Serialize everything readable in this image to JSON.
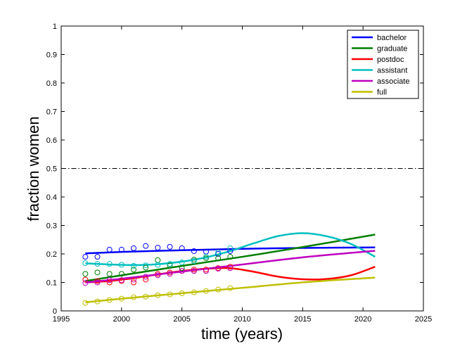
{
  "chart_data": {
    "type": "line",
    "xlabel": "time (years)",
    "ylabel": "fraction women",
    "xlim": [
      1995,
      2025
    ],
    "ylim": [
      0,
      1
    ],
    "xticks": [
      1995,
      2000,
      2005,
      2010,
      2015,
      2020,
      2025
    ],
    "yticks": [
      0,
      0.1,
      0.2,
      0.3,
      0.4,
      0.5,
      0.6,
      0.7,
      0.8,
      0.9,
      1
    ],
    "xtick_labels": [
      "1995",
      "2000",
      "2005",
      "2010",
      "2015",
      "2020",
      "2025"
    ],
    "ytick_labels": [
      "0",
      "0.1",
      "0.2",
      "0.3",
      "0.4",
      "0.5",
      "0.6",
      "0.7",
      "0.8",
      "0.9",
      "1"
    ],
    "grid": false,
    "legend_position": "top-right",
    "reference_line": {
      "y": 0.5,
      "style": "dash-dot"
    },
    "series": [
      {
        "name": "bachelor",
        "color": "#0000ff",
        "fit": {
          "x": [
            1997,
            2000,
            2005,
            2010,
            2015,
            2021
          ],
          "y": [
            0.202,
            0.207,
            0.213,
            0.218,
            0.221,
            0.223
          ]
        },
        "observed": {
          "x": [
            1997,
            1998,
            1999,
            2000,
            2001,
            2002,
            2003,
            2004,
            2005,
            2006,
            2007,
            2008,
            2009
          ],
          "y": [
            0.19,
            0.19,
            0.215,
            0.215,
            0.22,
            0.228,
            0.222,
            0.225,
            0.22,
            0.21,
            0.208,
            0.2,
            0.21
          ]
        }
      },
      {
        "name": "graduate",
        "color": "#007f00",
        "fit": {
          "x": [
            1997,
            2000,
            2005,
            2010,
            2015,
            2021
          ],
          "y": [
            0.105,
            0.125,
            0.158,
            0.19,
            0.224,
            0.268
          ]
        },
        "observed": {
          "x": [
            1997,
            1998,
            1999,
            2000,
            2001,
            2002,
            2003,
            2004,
            2005,
            2006,
            2007,
            2008,
            2009
          ],
          "y": [
            0.13,
            0.135,
            0.13,
            0.13,
            0.145,
            0.152,
            0.178,
            0.16,
            0.15,
            0.18,
            0.185,
            0.185,
            0.19
          ]
        }
      },
      {
        "name": "postdoc",
        "color": "#ff0000",
        "fit": {
          "x": [
            1997,
            1999,
            2001,
            2003,
            2005,
            2007,
            2009,
            2011,
            2013,
            2015,
            2017,
            2019,
            2021
          ],
          "y": [
            0.1,
            0.105,
            0.115,
            0.128,
            0.14,
            0.148,
            0.15,
            0.137,
            0.12,
            0.111,
            0.112,
            0.125,
            0.155
          ]
        },
        "observed": {
          "x": [
            1997,
            1998,
            1999,
            2000,
            2001,
            2002,
            2003,
            2004,
            2005,
            2006,
            2007,
            2008,
            2009
          ],
          "y": [
            0.11,
            0.105,
            0.1,
            0.105,
            0.1,
            0.11,
            0.13,
            0.135,
            0.14,
            0.145,
            0.145,
            0.15,
            0.155
          ]
        }
      },
      {
        "name": "assistant",
        "color": "#00bfbf",
        "fit": {
          "x": [
            1997,
            1999,
            2001,
            2003,
            2005,
            2007,
            2009,
            2011,
            2013,
            2015,
            2017,
            2019,
            2021
          ],
          "y": [
            0.167,
            0.163,
            0.161,
            0.164,
            0.173,
            0.188,
            0.21,
            0.238,
            0.263,
            0.273,
            0.262,
            0.235,
            0.19
          ]
        },
        "observed": {
          "x": [
            1997,
            1998,
            1999,
            2000,
            2001,
            2002,
            2003,
            2004,
            2005,
            2006,
            2007,
            2008,
            2009
          ],
          "y": [
            0.168,
            0.165,
            0.165,
            0.162,
            0.158,
            0.16,
            0.162,
            0.165,
            0.17,
            0.175,
            0.19,
            0.205,
            0.22
          ]
        }
      },
      {
        "name": "associate",
        "color": "#bf00bf",
        "fit": {
          "x": [
            1997,
            2000,
            2005,
            2010,
            2015,
            2021
          ],
          "y": [
            0.1,
            0.113,
            0.138,
            0.163,
            0.188,
            0.211
          ]
        },
        "observed": {
          "x": [
            1997,
            1998,
            1999,
            2000,
            2001,
            2002,
            2003,
            2004,
            2005,
            2006,
            2007,
            2008,
            2009
          ],
          "y": [
            0.098,
            0.1,
            0.108,
            0.108,
            0.11,
            0.12,
            0.125,
            0.13,
            0.14,
            0.14,
            0.14,
            0.148,
            0.15
          ]
        }
      },
      {
        "name": "full",
        "color": "#bfbf00",
        "fit": {
          "x": [
            1997,
            2000,
            2005,
            2010,
            2015,
            2021
          ],
          "y": [
            0.03,
            0.043,
            0.062,
            0.081,
            0.1,
            0.117
          ]
        },
        "observed": {
          "x": [
            1997,
            1998,
            1999,
            2000,
            2001,
            2002,
            2003,
            2004,
            2005,
            2006,
            2007,
            2008,
            2009
          ],
          "y": [
            0.028,
            0.033,
            0.038,
            0.043,
            0.048,
            0.05,
            0.055,
            0.058,
            0.062,
            0.065,
            0.07,
            0.075,
            0.08
          ]
        }
      }
    ]
  }
}
